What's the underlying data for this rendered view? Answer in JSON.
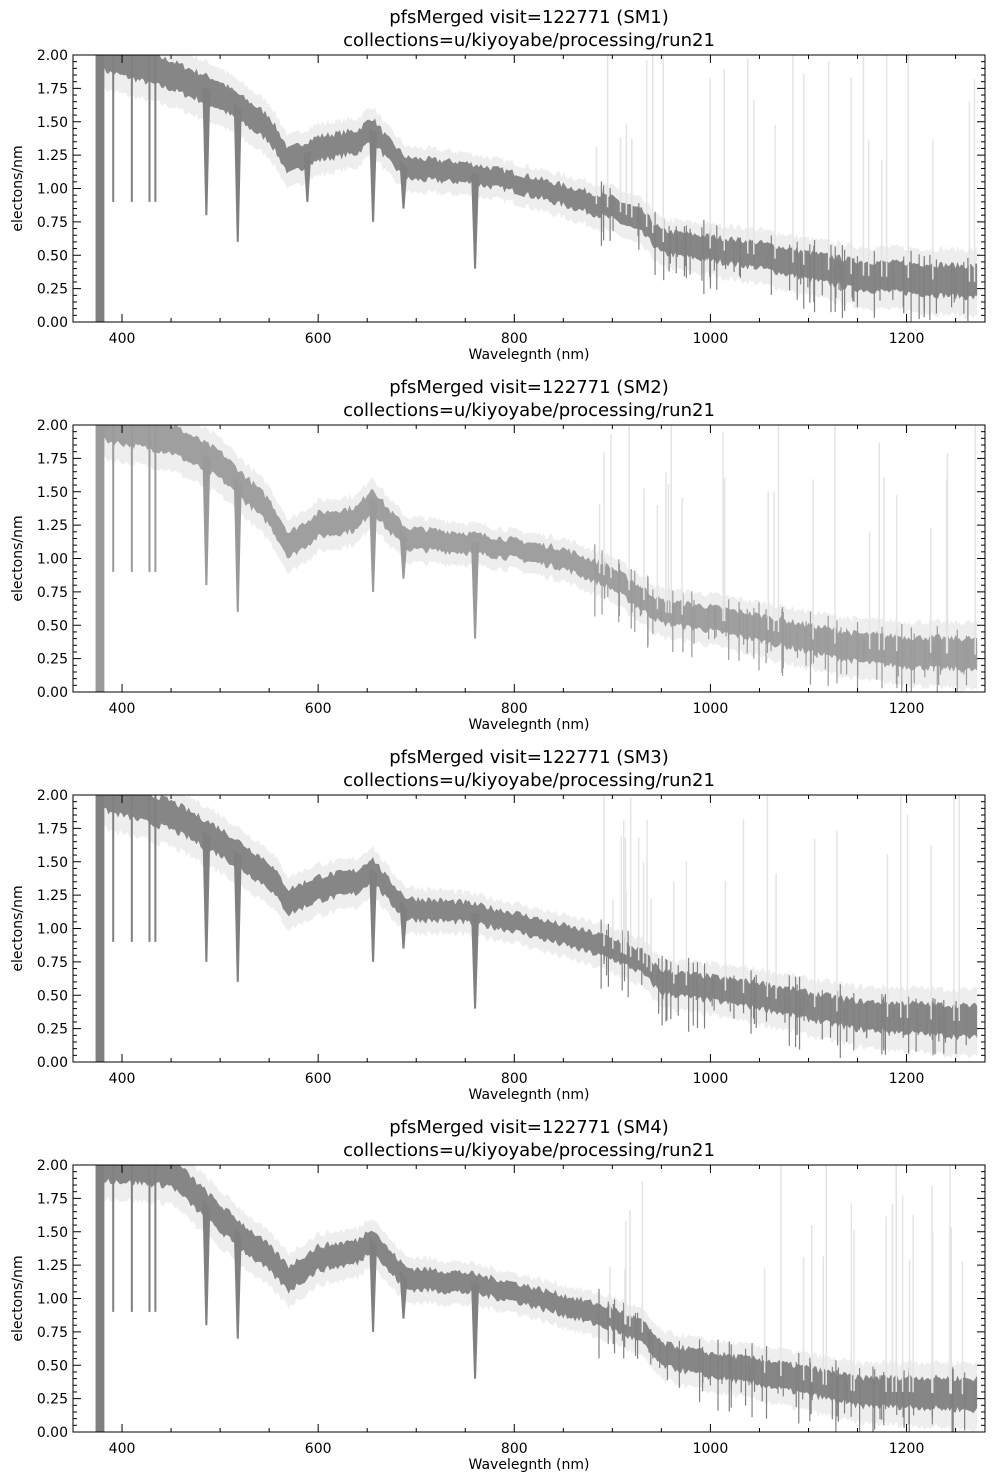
{
  "chart_data": [
    {
      "type": "line",
      "title": "pfsMerged visit=122771 (SM1)",
      "subtitle": "collections=u/kiyoyabe/processing/run21",
      "xlabel": "Wavelegnth (nm)",
      "ylabel": "electons/nm",
      "xlim": [
        350,
        1280
      ],
      "ylim": [
        0,
        2.0
      ],
      "xticks": [
        400,
        600,
        800,
        1000,
        1200
      ],
      "yticks": [
        "0.00",
        "0.25",
        "0.50",
        "0.75",
        "1.00",
        "1.25",
        "1.50",
        "1.75",
        "2.00"
      ],
      "grid": false,
      "color": "#808080",
      "x": [
        380,
        450,
        500,
        550,
        570,
        600,
        640,
        655,
        670,
        690,
        750,
        800,
        850,
        900,
        930,
        950,
        1000,
        1050,
        1100,
        1150,
        1200,
        1270
      ],
      "y": [
        2.0,
        1.85,
        1.7,
        1.45,
        1.2,
        1.3,
        1.35,
        1.45,
        1.3,
        1.15,
        1.12,
        1.05,
        0.95,
        0.85,
        0.75,
        0.6,
        0.55,
        0.5,
        0.42,
        0.35,
        0.33,
        0.3
      ],
      "absorption_lines": [
        [
          486,
          0.8
        ],
        [
          518,
          0.6
        ],
        [
          589,
          0.9
        ],
        [
          656,
          0.75
        ],
        [
          687,
          0.85
        ],
        [
          760,
          0.4
        ]
      ]
    },
    {
      "type": "line",
      "title": "pfsMerged visit=122771 (SM2)",
      "subtitle": "collections=u/kiyoyabe/processing/run21",
      "xlabel": "Wavelegnth (nm)",
      "ylabel": "electons/nm",
      "xlim": [
        350,
        1280
      ],
      "ylim": [
        0,
        2.0
      ],
      "xticks": [
        400,
        600,
        800,
        1000,
        1200
      ],
      "yticks": [
        "0.00",
        "0.25",
        "0.50",
        "0.75",
        "1.00",
        "1.25",
        "1.50",
        "1.75",
        "2.00"
      ],
      "grid": false,
      "color": "#9a9a9a",
      "x": [
        380,
        450,
        500,
        550,
        570,
        600,
        640,
        655,
        670,
        690,
        750,
        800,
        850,
        900,
        930,
        950,
        1000,
        1050,
        1100,
        1150,
        1200,
        1270
      ],
      "y": [
        2.0,
        1.9,
        1.7,
        1.35,
        1.1,
        1.25,
        1.3,
        1.45,
        1.3,
        1.15,
        1.12,
        1.07,
        1.0,
        0.85,
        0.7,
        0.6,
        0.55,
        0.48,
        0.4,
        0.33,
        0.3,
        0.28
      ],
      "absorption_lines": [
        [
          486,
          0.8
        ],
        [
          518,
          0.6
        ],
        [
          656,
          0.75
        ],
        [
          687,
          0.85
        ],
        [
          760,
          0.4
        ]
      ]
    },
    {
      "type": "line",
      "title": "pfsMerged visit=122771 (SM3)",
      "subtitle": "collections=u/kiyoyabe/processing/run21",
      "xlabel": "Wavelegnth (nm)",
      "ylabel": "electons/nm",
      "xlim": [
        350,
        1280
      ],
      "ylim": [
        0,
        2.0
      ],
      "xticks": [
        400,
        600,
        800,
        1000,
        1200
      ],
      "yticks": [
        "0.00",
        "0.25",
        "0.50",
        "0.75",
        "1.00",
        "1.25",
        "1.50",
        "1.75",
        "2.00"
      ],
      "grid": false,
      "color": "#808080",
      "x": [
        380,
        450,
        500,
        550,
        570,
        600,
        640,
        655,
        670,
        690,
        750,
        800,
        850,
        900,
        930,
        950,
        1000,
        1050,
        1100,
        1150,
        1200,
        1270
      ],
      "y": [
        2.0,
        1.85,
        1.65,
        1.4,
        1.2,
        1.3,
        1.35,
        1.45,
        1.3,
        1.15,
        1.12,
        1.05,
        0.95,
        0.85,
        0.75,
        0.6,
        0.55,
        0.5,
        0.42,
        0.35,
        0.33,
        0.3
      ],
      "absorption_lines": [
        [
          486,
          0.75
        ],
        [
          518,
          0.6
        ],
        [
          656,
          0.75
        ],
        [
          687,
          0.85
        ],
        [
          760,
          0.4
        ]
      ]
    },
    {
      "type": "line",
      "title": "pfsMerged visit=122771 (SM4)",
      "subtitle": "collections=u/kiyoyabe/processing/run21",
      "xlabel": "Wavelegnth (nm)",
      "ylabel": "electons/nm",
      "xlim": [
        350,
        1280
      ],
      "ylim": [
        0,
        2.0
      ],
      "xticks": [
        400,
        600,
        800,
        1000,
        1200
      ],
      "yticks": [
        "0.00",
        "0.25",
        "0.50",
        "0.75",
        "1.00",
        "1.25",
        "1.50",
        "1.75",
        "2.00"
      ],
      "grid": false,
      "color": "#808080",
      "x": [
        380,
        450,
        500,
        550,
        570,
        600,
        640,
        655,
        670,
        690,
        750,
        800,
        850,
        900,
        930,
        950,
        1000,
        1050,
        1100,
        1150,
        1200,
        1270
      ],
      "y": [
        2.0,
        1.95,
        1.6,
        1.3,
        1.15,
        1.3,
        1.35,
        1.45,
        1.3,
        1.15,
        1.12,
        1.05,
        0.95,
        0.85,
        0.75,
        0.58,
        0.5,
        0.45,
        0.38,
        0.3,
        0.3,
        0.28
      ],
      "absorption_lines": [
        [
          486,
          0.8
        ],
        [
          518,
          0.7
        ],
        [
          656,
          0.75
        ],
        [
          687,
          0.85
        ],
        [
          760,
          0.4
        ]
      ]
    }
  ]
}
